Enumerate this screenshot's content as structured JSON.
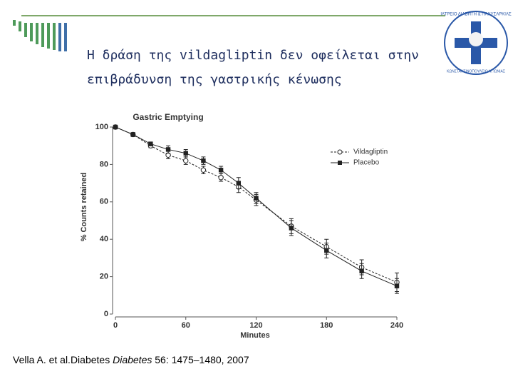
{
  "slide": {
    "title_lines": [
      "Η δράση της vildagliptin δεν οφείλεται στην",
      "επιβράδυνση της γαστρικής κένωσης"
    ],
    "logo_text": [
      "ΙΑΤΡΕΙΟ ΔΙΑΒΗΤΗ & ΠΑΧΥΣΑΡΚΙΑΣ",
      "ΚΩΝΣΤΑΝΤΙΝΟΠΟΥΛΕΙΟ Ν. ΙΩΝΙΑΣ"
    ],
    "citation": {
      "before": "Vella A. et al.Diabetes ",
      "italic": "Diabetes",
      "after": " 56: 1475–1480, 2007"
    }
  },
  "chart_data": {
    "type": "line",
    "title": "Gastric Emptying",
    "x_label": "Minutes",
    "y_label": "% Counts retained",
    "x": [
      0,
      15,
      30,
      45,
      60,
      75,
      90,
      105,
      120,
      150,
      180,
      210,
      240
    ],
    "series": [
      {
        "name": "Vildagliptin",
        "color": "#222222",
        "marker": "open-circle",
        "values": [
          100,
          96,
          90,
          85,
          82,
          77,
          73,
          68,
          61,
          47,
          36,
          25,
          17
        ],
        "errors": [
          0,
          1,
          1,
          2,
          2,
          2,
          2,
          3,
          3,
          4,
          4,
          4,
          5
        ]
      },
      {
        "name": "Placebo",
        "color": "#222222",
        "marker": "filled-square",
        "values": [
          100,
          96,
          91,
          88,
          86,
          82,
          77,
          70,
          62,
          46,
          34,
          23,
          15
        ],
        "errors": [
          0,
          1,
          1,
          2,
          2,
          2,
          2,
          3,
          3,
          4,
          4,
          4,
          4
        ]
      }
    ],
    "xlim": [
      0,
      240
    ],
    "xticks": [
      0,
      60,
      120,
      180,
      240
    ],
    "ylim": [
      0,
      100
    ],
    "yticks": [
      0,
      20,
      40,
      60,
      80,
      100
    ]
  }
}
